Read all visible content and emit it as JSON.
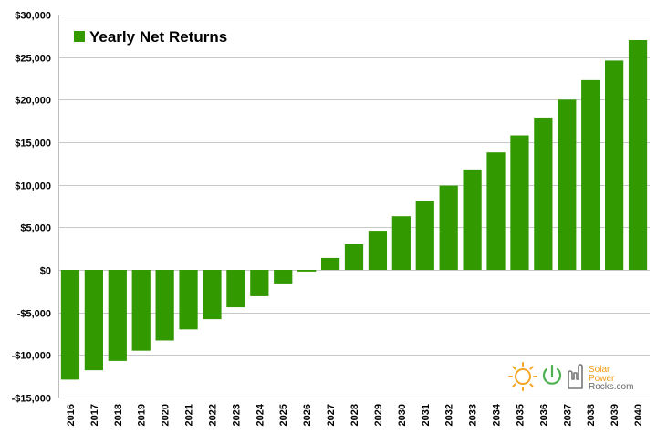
{
  "colors": {
    "bar": "#339900",
    "grid": "#c8c8c8",
    "axis": "#bdbdbd",
    "logo_sun": "#f5a623",
    "logo_power": "#4caf50",
    "logo_hand": "#777777"
  },
  "chart_data": {
    "type": "bar",
    "categories": [
      "2016",
      "2017",
      "2018",
      "2019",
      "2020",
      "2021",
      "2022",
      "2023",
      "2024",
      "2025",
      "2026",
      "2027",
      "2028",
      "2029",
      "2030",
      "2031",
      "2032",
      "2033",
      "2034",
      "2035",
      "2036",
      "2037",
      "2038",
      "2039",
      "2040"
    ],
    "series": [
      {
        "name": "Yearly Net Returns",
        "values": [
          -12900,
          -11800,
          -10700,
          -9500,
          -8300,
          -7000,
          -5800,
          -4400,
          -3100,
          -1600,
          -200,
          1400,
          3000,
          4600,
          6300,
          8100,
          9900,
          11800,
          13800,
          15800,
          17900,
          20000,
          22300,
          24600,
          27000
        ]
      }
    ],
    "ylim": [
      -15000,
      30000
    ],
    "yticks": [
      -15000,
      -10000,
      -5000,
      0,
      5000,
      10000,
      15000,
      20000,
      25000,
      30000
    ],
    "ytick_labels": [
      "-$15,000",
      "-$10,000",
      "-$5,000",
      "$0",
      "$5,000",
      "$10,000",
      "$15,000",
      "$20,000",
      "$25,000",
      "$30,000"
    ],
    "title": "",
    "xlabel": "",
    "ylabel": "",
    "legend_position": "top-left",
    "grid": true
  },
  "logo": {
    "line1": "Solar",
    "line2": "Power",
    "line3": "Rocks.com"
  }
}
